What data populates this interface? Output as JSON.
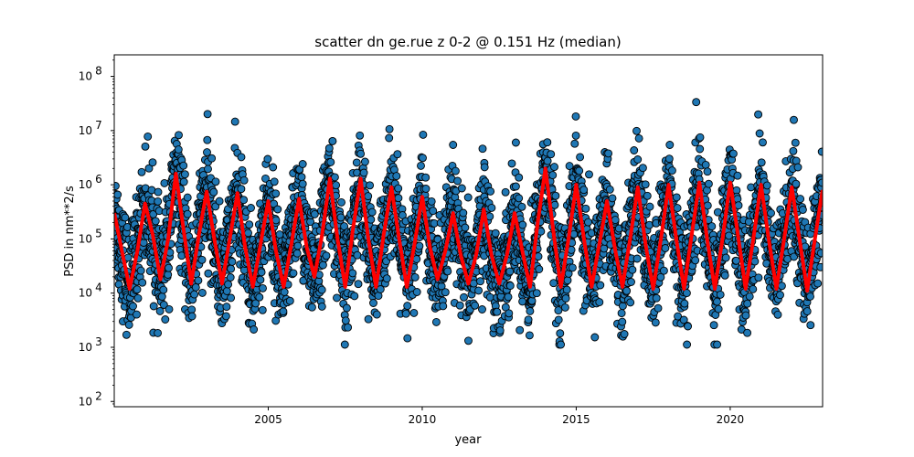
{
  "chart_data": {
    "type": "scatter",
    "title": "scatter dn ge.rue z 0-2 @ 0.151 Hz (median)",
    "xlabel": "year",
    "ylabel": "PSD in nm**2/s",
    "xlim": [
      2000.0,
      2023.0
    ],
    "ylim": [
      80,
      250000000
    ],
    "yscale": "log",
    "grid": false,
    "x_ticks": [
      2005,
      2010,
      2015,
      2020
    ],
    "x_tick_labels": [
      "2005",
      "2010",
      "2015",
      "2020"
    ],
    "y_ticks": [
      100,
      1000,
      10000,
      100000,
      1000000,
      10000000,
      100000000
    ],
    "y_tick_labels": [
      {
        "base": "10",
        "exp": "2"
      },
      {
        "base": "10",
        "exp": "3"
      },
      {
        "base": "10",
        "exp": "4"
      },
      {
        "base": "10",
        "exp": "5"
      },
      {
        "base": "10",
        "exp": "6"
      },
      {
        "base": "10",
        "exp": "7"
      },
      {
        "base": "10",
        "exp": "8"
      }
    ],
    "colors": {
      "scatter_fill": "#1f77b4",
      "scatter_edge": "#000000",
      "median_line": "#ff0000"
    },
    "series": [
      {
        "kind": "scatter",
        "description": "individual PSD values (dense, seasonal); peaks ~1e6-4e7 in winters, lows ~2e3-1e4 in summers"
      },
      {
        "kind": "line",
        "x": [
          2000.0,
          2000.25,
          2000.5,
          2000.75,
          2001.0,
          2001.25,
          2001.5,
          2001.75,
          2002.0,
          2002.25,
          2002.5,
          2002.75,
          2003.0,
          2003.25,
          2003.5,
          2003.75,
          2004.0,
          2004.25,
          2004.5,
          2004.75,
          2005.0,
          2005.25,
          2005.5,
          2005.75,
          2006.0,
          2006.25,
          2006.5,
          2006.75,
          2007.0,
          2007.25,
          2007.5,
          2007.75,
          2008.0,
          2008.25,
          2008.5,
          2008.75,
          2009.0,
          2009.25,
          2009.5,
          2009.75,
          2010.0,
          2010.25,
          2010.5,
          2010.75,
          2011.0,
          2011.25,
          2011.5,
          2011.75,
          2012.0,
          2012.25,
          2012.5,
          2012.75,
          2013.0,
          2013.25,
          2013.5,
          2013.75,
          2014.0,
          2014.25,
          2014.5,
          2014.75,
          2015.0,
          2015.25,
          2015.5,
          2015.75,
          2016.0,
          2016.25,
          2016.5,
          2016.75,
          2017.0,
          2017.25,
          2017.5,
          2017.75,
          2018.0,
          2018.25,
          2018.5,
          2018.75,
          2019.0,
          2019.25,
          2019.5,
          2019.75,
          2020.0,
          2020.25,
          2020.5,
          2020.75,
          2021.0,
          2021.25,
          2021.5,
          2021.75,
          2022.0,
          2022.25,
          2022.5,
          2022.75,
          2023.0
        ],
        "y": [
          300000,
          60000,
          12000,
          60000,
          450000,
          120000,
          18000,
          100000,
          1600000,
          150000,
          15000,
          120000,
          750000,
          100000,
          15000,
          100000,
          700000,
          70000,
          13000,
          80000,
          500000,
          60000,
          13000,
          80000,
          550000,
          70000,
          20000,
          120000,
          1300000,
          100000,
          13000,
          150000,
          1300000,
          100000,
          13000,
          120000,
          900000,
          100000,
          13000,
          80000,
          600000,
          70000,
          18000,
          60000,
          300000,
          50000,
          15000,
          50000,
          350000,
          50000,
          15000,
          50000,
          300000,
          60000,
          13000,
          200000,
          2000000,
          150000,
          13000,
          100000,
          1000000,
          100000,
          13000,
          80000,
          500000,
          70000,
          13000,
          100000,
          900000,
          80000,
          12000,
          100000,
          1000000,
          100000,
          12000,
          120000,
          1100000,
          100000,
          12000,
          100000,
          1100000,
          120000,
          12000,
          100000,
          1000000,
          100000,
          12000,
          100000,
          900000,
          100000,
          11000,
          100000,
          800000
        ]
      }
    ]
  }
}
